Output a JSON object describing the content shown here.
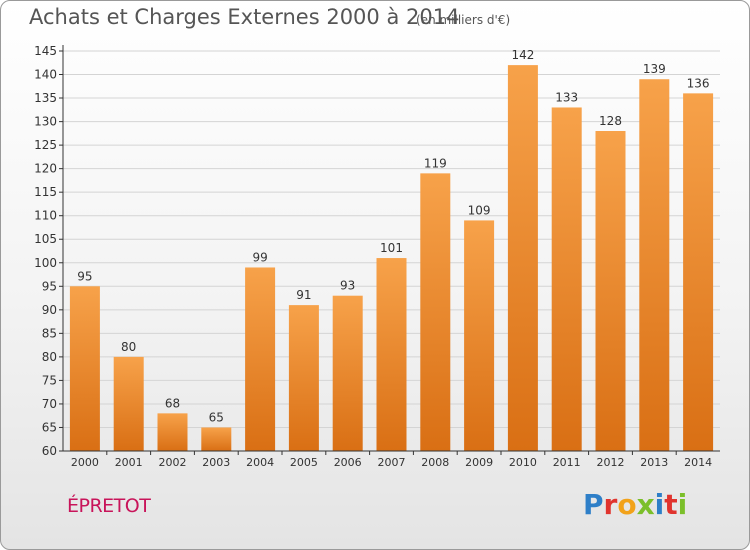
{
  "header": {
    "title": "Achats et Charges Externes 2000 à 2014",
    "subtitle": "(en milliers d'€)"
  },
  "commune": "ÉPRETOT",
  "logo": {
    "text": "Proxiti",
    "letters": [
      {
        "ch": "P",
        "color": "#2e7fc8"
      },
      {
        "ch": "r",
        "color": "#e0342e"
      },
      {
        "ch": "o",
        "color": "#f2a21a"
      },
      {
        "ch": "x",
        "color": "#7bbf2a"
      },
      {
        "ch": "i",
        "color": "#2e7fc8"
      },
      {
        "ch": "t",
        "color": "#e0342e"
      },
      {
        "ch": "i",
        "color": "#7bbf2a"
      }
    ]
  },
  "colors": {
    "bar_top": "#f7a24a",
    "bar_bottom": "#d96f14",
    "axis": "#333333",
    "grid": "#d4d4d4",
    "text": "#333333"
  },
  "chart_data": {
    "type": "bar",
    "categories": [
      "2000",
      "2001",
      "2002",
      "2003",
      "2004",
      "2005",
      "2006",
      "2007",
      "2008",
      "2009",
      "2010",
      "2011",
      "2012",
      "2013",
      "2014"
    ],
    "values": [
      95,
      80,
      68,
      65,
      99,
      91,
      93,
      101,
      119,
      109,
      142,
      133,
      128,
      139,
      136
    ],
    "ylim": [
      60,
      145
    ],
    "yticks": [
      60,
      65,
      70,
      75,
      80,
      85,
      90,
      95,
      100,
      105,
      110,
      115,
      120,
      125,
      130,
      135,
      140,
      145
    ],
    "grid": true
  }
}
